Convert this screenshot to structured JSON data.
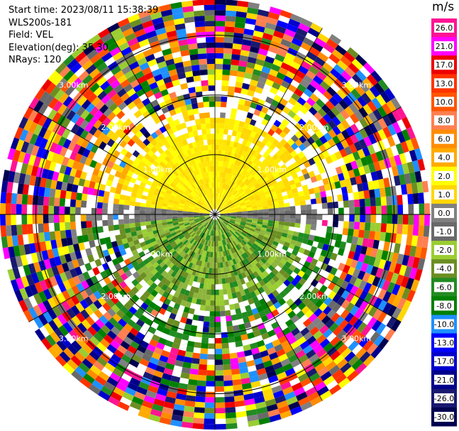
{
  "header": {
    "start_time": "Start time: 2023/08/11 15:38:39",
    "instrument": "WLS200s-181",
    "field": "Field: VEL",
    "elevation": "Elevation(deg): 35.30",
    "nrays": "NRays: 120"
  },
  "chart_data": {
    "type": "ppi-radar",
    "field": "VEL",
    "unit_label": "m/s",
    "range_rings_km": [
      1.0,
      2.0,
      3.0
    ],
    "ring_label_text": [
      "1.00km",
      "2.00km",
      "3.00km"
    ],
    "max_range_km": 3.6,
    "colorbar": {
      "tick_labels": [
        "26.0",
        "21.0",
        "17.0",
        "13.0",
        "10.0",
        "8.0",
        "6.0",
        "4.0",
        "2.0",
        "1.0",
        "0.0",
        "-1.0",
        "-2.0",
        "-4.0",
        "-6.0",
        "-8.0",
        "-10.0",
        "-13.0",
        "-17.0",
        "-21.0",
        "-26.0",
        "-30.0"
      ],
      "colors": [
        "#ff1493",
        "#ff00ff",
        "#ee0000",
        "#ff3300",
        "#ff5500",
        "#ff7f50",
        "#ff8c00",
        "#ffaa00",
        "#ffff00",
        "#ffd700",
        "#808080",
        "#696969",
        "#9acd32",
        "#6b8e23",
        "#228b22",
        "#008000",
        "#1e90ff",
        "#0000ff",
        "#0000cd",
        "#00008b",
        "#191970",
        "#000050"
      ]
    },
    "sectors": {
      "positive_color_region_deg": [
        280,
        80
      ],
      "negative_color_region_deg": [
        100,
        260
      ],
      "near_zero_band_deg": [
        [
          80,
          100
        ],
        [
          260,
          280
        ]
      ],
      "inner_clean_radius_km": 1.6,
      "noisy_from_km": 2.3
    }
  }
}
